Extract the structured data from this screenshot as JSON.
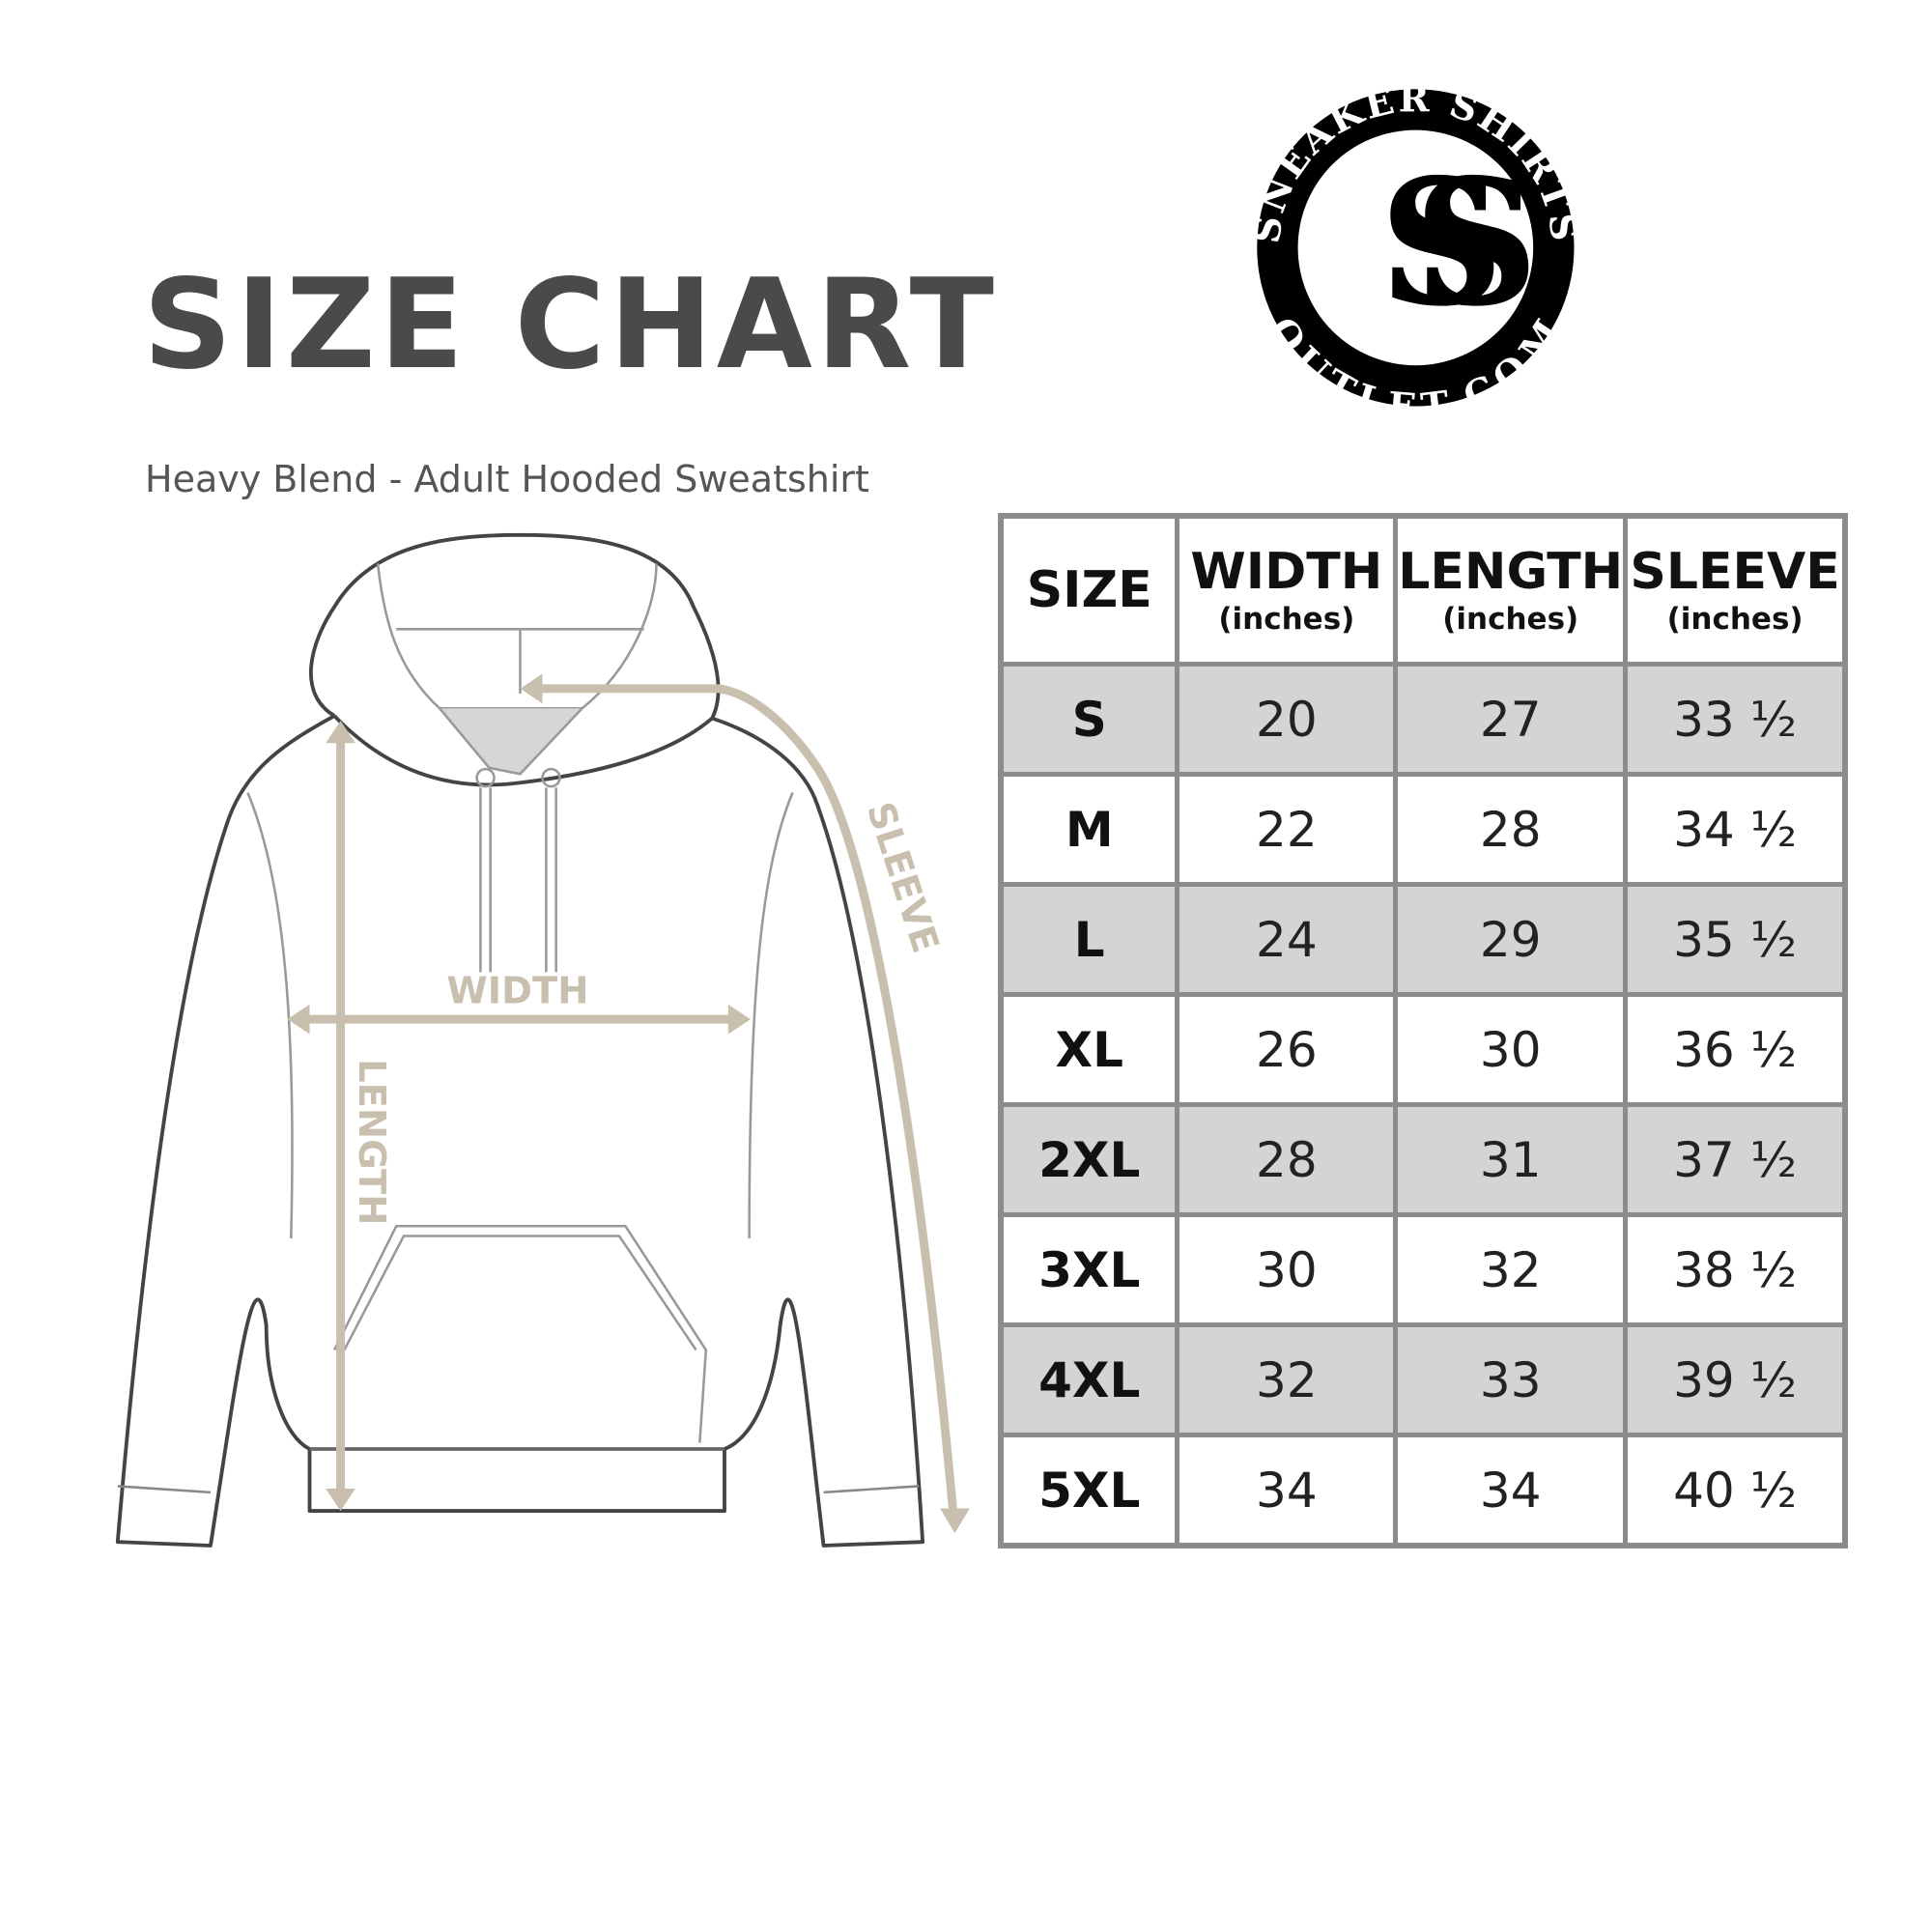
{
  "title": "SIZE CHART",
  "subtitle": "Heavy Blend - Adult Hooded Sweatshirt",
  "logo": {
    "top_text": "SNEAKER SHIRTS",
    "bottom_text": "OUTLET.COM",
    "monogram": "SS"
  },
  "diagram": {
    "labels": {
      "width": "WIDTH",
      "length": "LENGTH",
      "sleeve": "SLEEVE"
    },
    "arrow_color": "#c9bfae"
  },
  "table": {
    "headers": [
      {
        "label": "SIZE",
        "unit": ""
      },
      {
        "label": "WIDTH",
        "unit": "(inches)"
      },
      {
        "label": "LENGTH",
        "unit": "(inches)"
      },
      {
        "label": "SLEEVE",
        "unit": "(inches)"
      }
    ],
    "rows": [
      [
        "S",
        "20",
        "27",
        "33 ½"
      ],
      [
        "M",
        "22",
        "28",
        "34 ½"
      ],
      [
        "L",
        "24",
        "29",
        "35 ½"
      ],
      [
        "XL",
        "26",
        "30",
        "36 ½"
      ],
      [
        "2XL",
        "28",
        "31",
        "37 ½"
      ],
      [
        "3XL",
        "30",
        "32",
        "38 ½"
      ],
      [
        "4XL",
        "32",
        "33",
        "39 ½"
      ],
      [
        "5XL",
        "34",
        "34",
        "40 ½"
      ]
    ]
  }
}
